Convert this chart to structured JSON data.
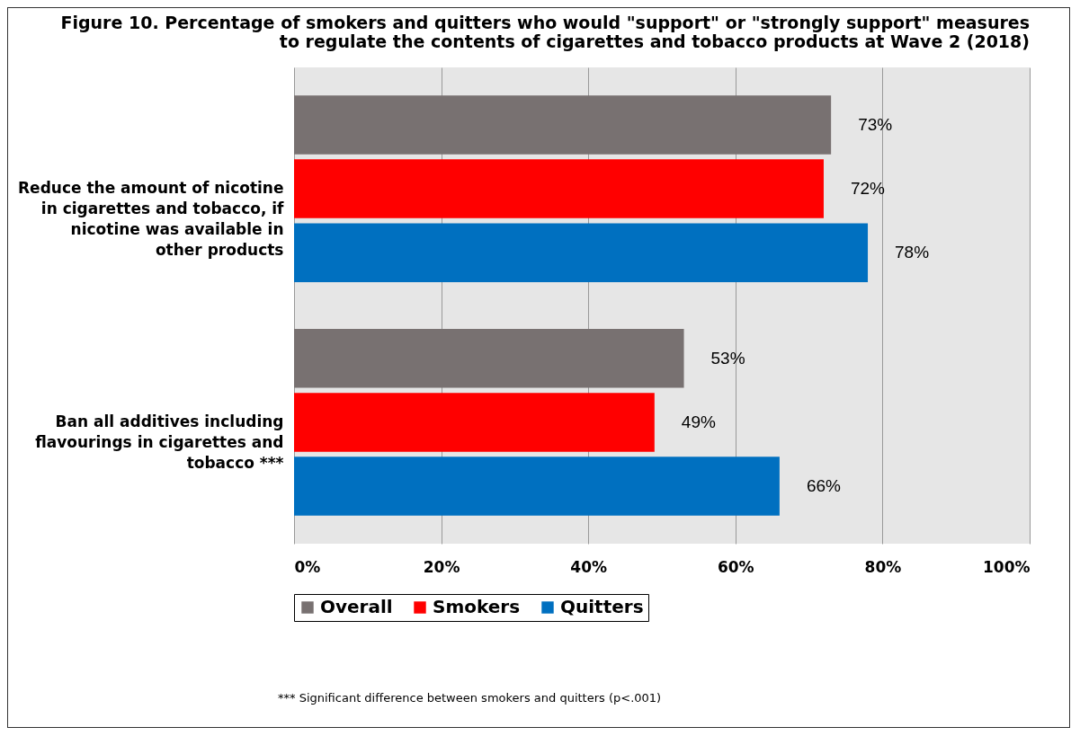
{
  "chart_data": {
    "type": "bar",
    "orientation": "horizontal",
    "title": "Figure 10. Percentage of smokers and quitters who would \"support\" or \"strongly support\" measures to regulate the contents of cigarettes and tobacco products at Wave 2 (2018)",
    "categories": [
      "Reduce the amount of nicotine in cigarettes and tobacco, if nicotine was available in other products",
      "Ban all additives including flavourings in cigarettes and tobacco ***"
    ],
    "series": [
      {
        "name": "Overall",
        "color": "#787171",
        "values": [
          73,
          53
        ],
        "value_labels": [
          "73%",
          "53%"
        ]
      },
      {
        "name": "Smokers",
        "color": "#ff0000",
        "values": [
          72,
          49
        ],
        "value_labels": [
          "72%",
          "49%"
        ]
      },
      {
        "name": "Quitters",
        "color": "#0070c0",
        "values": [
          78,
          66
        ],
        "value_labels": [
          "78%",
          "66%"
        ]
      }
    ],
    "xlim": [
      0,
      100
    ],
    "xticks": [
      {
        "value": 0,
        "label": "0%"
      },
      {
        "value": 20,
        "label": "20%"
      },
      {
        "value": 40,
        "label": "40%"
      },
      {
        "value": 60,
        "label": "60%"
      },
      {
        "value": 80,
        "label": "80%"
      },
      {
        "value": 100,
        "label": "100%"
      }
    ],
    "grid": "x",
    "legend": "bottom",
    "annotations": [
      "*** Significant difference between smokers and quitters (p<.001)"
    ]
  }
}
